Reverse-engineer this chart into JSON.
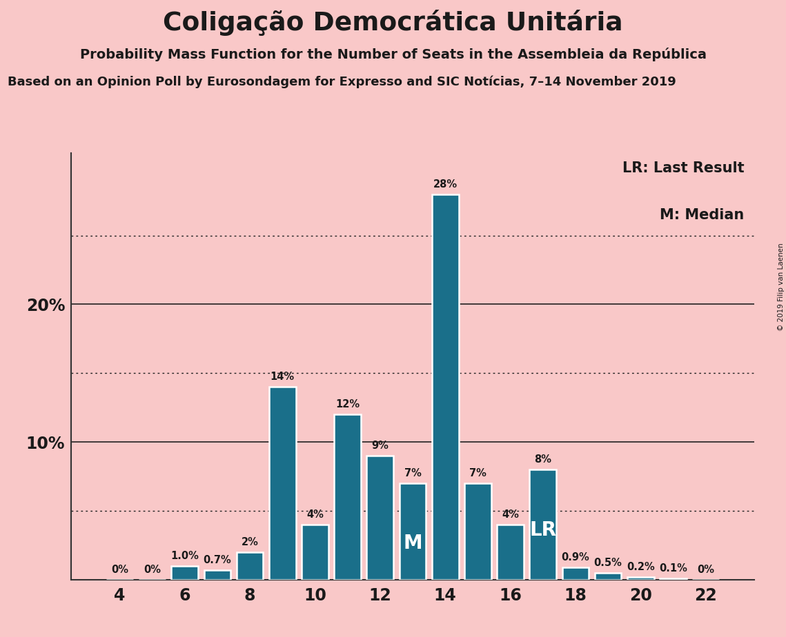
{
  "title": "Coligação Democrática Unitária",
  "subtitle1": "Probability Mass Function for the Number of Seats in the Assembleia da República",
  "subtitle2": "Based on an Opinion Poll by Eurosondagem for Expresso and SIC Notícias, 7–14 November 2019",
  "copyright": "© 2019 Filip van Laenen",
  "seats": [
    4,
    5,
    6,
    7,
    8,
    9,
    10,
    11,
    12,
    13,
    14,
    15,
    16,
    17,
    18,
    19,
    20,
    21,
    22
  ],
  "values": [
    0.0,
    0.0,
    1.0,
    0.7,
    2.0,
    14.0,
    4.0,
    12.0,
    9.0,
    7.0,
    28.0,
    7.0,
    4.0,
    8.0,
    0.9,
    0.5,
    0.2,
    0.1,
    0.0
  ],
  "labels": [
    "0%",
    "0%",
    "1.0%",
    "0.7%",
    "2%",
    "14%",
    "4%",
    "12%",
    "9%",
    "7%",
    "28%",
    "7%",
    "4%",
    "8%",
    "0.9%",
    "0.5%",
    "0.2%",
    "0.1%",
    "0%"
  ],
  "bar_color": "#1a6f8a",
  "background_color": "#f9c8c8",
  "median_seat": 13,
  "lr_seat": 17,
  "legend_lr": "LR: Last Result",
  "legend_m": "M: Median",
  "ysolid_lines": [
    10,
    20
  ],
  "ydotted_lines": [
    5,
    15,
    25
  ],
  "ylim": [
    0,
    31
  ],
  "xlim_left": 2.5,
  "xlim_right": 23.5,
  "bar_width": 0.82
}
